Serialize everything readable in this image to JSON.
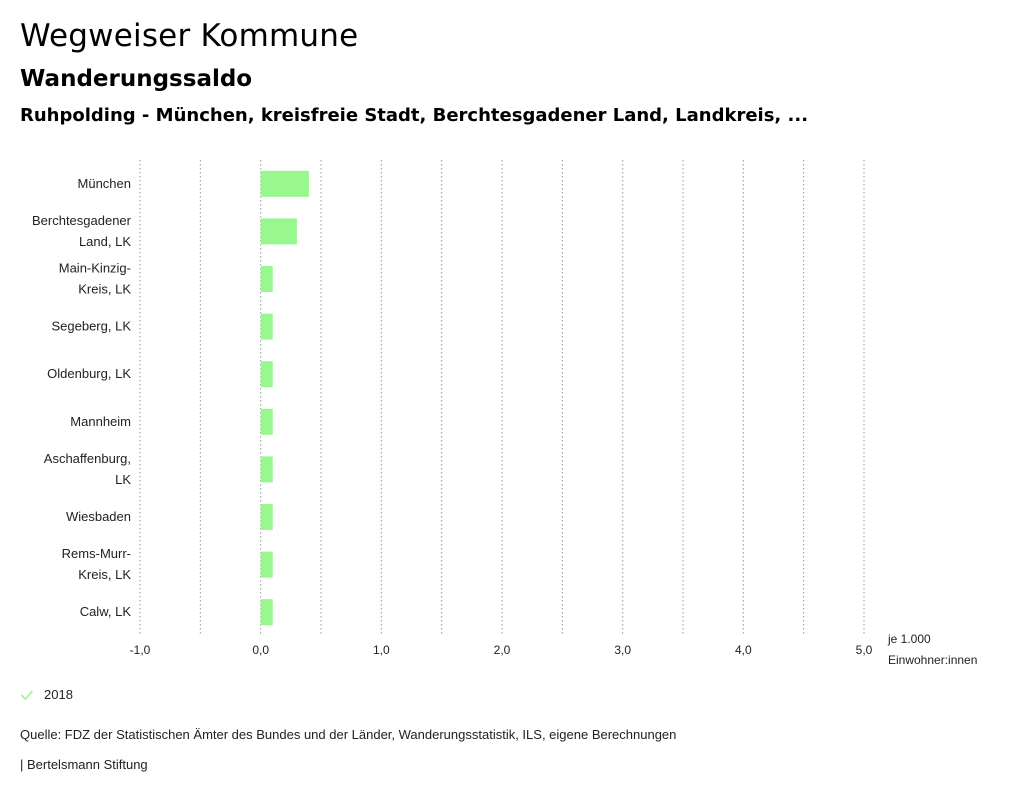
{
  "header": {
    "title": "Wegweiser Kommune",
    "subtitle": "Wanderungssaldo",
    "region": "Ruhpolding - München, kreisfreie Stadt, Berchtesgadener Land, Landkreis, ..."
  },
  "legend": {
    "label": "2018",
    "icon": "check-icon",
    "color": "#99f78f"
  },
  "source": "Quelle: FDZ der Statistischen Ämter des Bundes und der Länder, Wanderungsstatistik, ILS, eigene Berechnungen",
  "footer": "| Bertelsmann Stiftung",
  "chart_data": {
    "type": "bar",
    "orientation": "horizontal",
    "categories": [
      [
        "München"
      ],
      [
        "Berchtesgadener",
        "Land, LK"
      ],
      [
        "Main-Kinzig-",
        "Kreis, LK"
      ],
      [
        "Segeberg, LK"
      ],
      [
        "Oldenburg, LK"
      ],
      [
        "Mannheim"
      ],
      [
        "Aschaffenburg,",
        "LK"
      ],
      [
        "Wiesbaden"
      ],
      [
        "Rems-Murr-",
        "Kreis, LK"
      ],
      [
        "Calw, LK"
      ]
    ],
    "series": [
      {
        "name": "2018",
        "color": "#99f78f",
        "values": [
          0.4,
          0.3,
          0.1,
          0.1,
          0.1,
          0.1,
          0.1,
          0.1,
          0.1,
          0.1
        ]
      }
    ],
    "xlim": [
      -1.0,
      5.0
    ],
    "xticks": [
      -1.0,
      0.0,
      1.0,
      2.0,
      3.0,
      4.0,
      5.0
    ],
    "xtick_labels": [
      "-1,0",
      "0,0",
      "1,0",
      "2,0",
      "3,0",
      "4,0",
      "5,0"
    ],
    "minor_gridlines": [
      -0.5,
      0.5,
      1.5,
      2.5,
      3.5,
      4.5
    ],
    "unit_label": [
      "je 1.000",
      "Einwohner:innen"
    ],
    "grid": true
  }
}
